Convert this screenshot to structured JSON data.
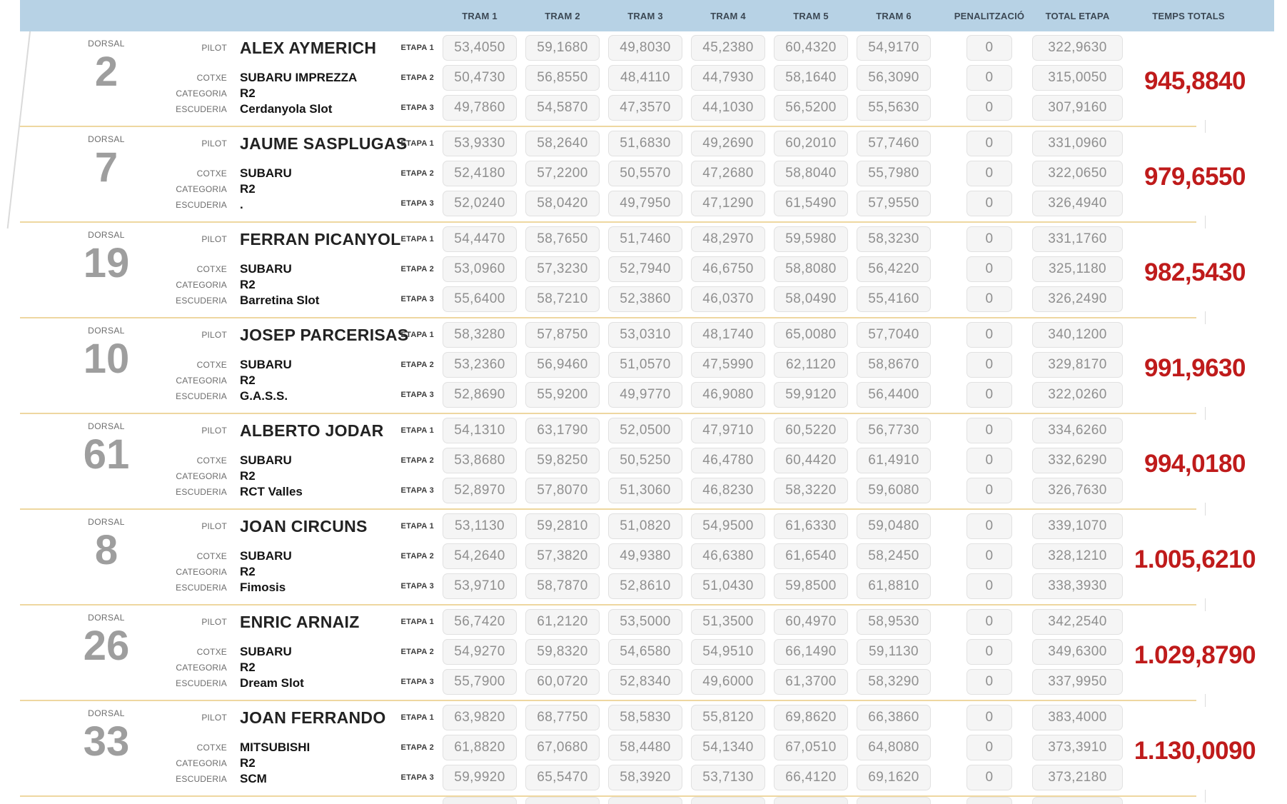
{
  "header": {
    "columns": [
      "TRAM 1",
      "TRAM 2",
      "TRAM 3",
      "TRAM 4",
      "TRAM 5",
      "TRAM 6",
      "PENALITZACIÓ",
      "TOTAL ETAPA",
      "TEMPS TOTALS"
    ]
  },
  "labels": {
    "dorsal": "DORSAL",
    "pilot": "PILOT",
    "cotxe": "COTXE",
    "categoria": "CATEGORIA",
    "escuderia": "ESCUDERIA",
    "etapes": [
      "ETAPA 1",
      "ETAPA 2",
      "ETAPA 3"
    ]
  },
  "colors": {
    "header_bg": "#b7d2e5",
    "header_text": "#3c4854",
    "row_separator": "#eed7a0",
    "cell_bg": "#f5f5f5",
    "cell_border": "#e1e1e1",
    "time_text": "#8f8f8f",
    "dorsal_gray": "#9e9e9e",
    "total_red": "#bf1b1b"
  },
  "riders": [
    {
      "dorsal": "2",
      "pilot": "ALEX AYMERICH",
      "cotxe": "SUBARU IMPREZZA",
      "categoria": "R2",
      "escuderia": "Cerdanyola Slot",
      "etapes": [
        {
          "trams": [
            "53,4050",
            "59,1680",
            "49,8030",
            "45,2380",
            "60,4320",
            "54,9170"
          ],
          "penalitzacio": "0",
          "total": "322,9630"
        },
        {
          "trams": [
            "50,4730",
            "56,8550",
            "48,4110",
            "44,7930",
            "58,1640",
            "56,3090"
          ],
          "penalitzacio": "0",
          "total": "315,0050"
        },
        {
          "trams": [
            "49,7860",
            "54,5870",
            "47,3570",
            "44,1030",
            "56,5200",
            "55,5630"
          ],
          "penalitzacio": "0",
          "total": "307,9160"
        }
      ],
      "temps_totals": "945,8840"
    },
    {
      "dorsal": "7",
      "pilot": "JAUME SASPLUGAS",
      "cotxe": "SUBARU",
      "categoria": "R2",
      "escuderia": ".",
      "etapes": [
        {
          "trams": [
            "53,9330",
            "58,2640",
            "51,6830",
            "49,2690",
            "60,2010",
            "57,7460"
          ],
          "penalitzacio": "0",
          "total": "331,0960"
        },
        {
          "trams": [
            "52,4180",
            "57,2200",
            "50,5570",
            "47,2680",
            "58,8040",
            "55,7980"
          ],
          "penalitzacio": "0",
          "total": "322,0650"
        },
        {
          "trams": [
            "52,0240",
            "58,0420",
            "49,7950",
            "47,1290",
            "61,5490",
            "57,9550"
          ],
          "penalitzacio": "0",
          "total": "326,4940"
        }
      ],
      "temps_totals": "979,6550"
    },
    {
      "dorsal": "19",
      "pilot": "FERRAN PICANYOL",
      "cotxe": "SUBARU",
      "categoria": "R2",
      "escuderia": "Barretina Slot",
      "etapes": [
        {
          "trams": [
            "54,4470",
            "58,7650",
            "51,7460",
            "48,2970",
            "59,5980",
            "58,3230"
          ],
          "penalitzacio": "0",
          "total": "331,1760"
        },
        {
          "trams": [
            "53,0960",
            "57,3230",
            "52,7940",
            "46,6750",
            "58,8080",
            "56,4220"
          ],
          "penalitzacio": "0",
          "total": "325,1180"
        },
        {
          "trams": [
            "55,6400",
            "58,7210",
            "52,3860",
            "46,0370",
            "58,0490",
            "55,4160"
          ],
          "penalitzacio": "0",
          "total": "326,2490"
        }
      ],
      "temps_totals": "982,5430"
    },
    {
      "dorsal": "10",
      "pilot": "JOSEP PARCERISAS",
      "cotxe": "SUBARU",
      "categoria": "R2",
      "escuderia": "G.A.S.S.",
      "etapes": [
        {
          "trams": [
            "58,3280",
            "57,8750",
            "53,0310",
            "48,1740",
            "65,0080",
            "57,7040"
          ],
          "penalitzacio": "0",
          "total": "340,1200"
        },
        {
          "trams": [
            "53,2360",
            "56,9460",
            "51,0570",
            "47,5990",
            "62,1120",
            "58,8670"
          ],
          "penalitzacio": "0",
          "total": "329,8170"
        },
        {
          "trams": [
            "52,8690",
            "55,9200",
            "49,9770",
            "46,9080",
            "59,9120",
            "56,4400"
          ],
          "penalitzacio": "0",
          "total": "322,0260"
        }
      ],
      "temps_totals": "991,9630"
    },
    {
      "dorsal": "61",
      "pilot": "ALBERTO JODAR",
      "cotxe": "SUBARU",
      "categoria": "R2",
      "escuderia": "RCT Valles",
      "etapes": [
        {
          "trams": [
            "54,1310",
            "63,1790",
            "52,0500",
            "47,9710",
            "60,5220",
            "56,7730"
          ],
          "penalitzacio": "0",
          "total": "334,6260"
        },
        {
          "trams": [
            "53,8680",
            "59,8250",
            "50,5250",
            "46,4780",
            "60,4420",
            "61,4910"
          ],
          "penalitzacio": "0",
          "total": "332,6290"
        },
        {
          "trams": [
            "52,8970",
            "57,8070",
            "51,3060",
            "46,8230",
            "58,3220",
            "59,6080"
          ],
          "penalitzacio": "0",
          "total": "326,7630"
        }
      ],
      "temps_totals": "994,0180"
    },
    {
      "dorsal": "8",
      "pilot": "JOAN CIRCUNS",
      "cotxe": "SUBARU",
      "categoria": "R2",
      "escuderia": "Fimosis",
      "etapes": [
        {
          "trams": [
            "53,1130",
            "59,2810",
            "51,0820",
            "54,9500",
            "61,6330",
            "59,0480"
          ],
          "penalitzacio": "0",
          "total": "339,1070"
        },
        {
          "trams": [
            "54,2640",
            "57,3820",
            "49,9380",
            "46,6380",
            "61,6540",
            "58,2450"
          ],
          "penalitzacio": "0",
          "total": "328,1210"
        },
        {
          "trams": [
            "53,9710",
            "58,7870",
            "52,8610",
            "51,0430",
            "59,8500",
            "61,8810"
          ],
          "penalitzacio": "0",
          "total": "338,3930"
        }
      ],
      "temps_totals": "1.005,6210"
    },
    {
      "dorsal": "26",
      "pilot": "ENRIC ARNAIZ",
      "cotxe": "SUBARU",
      "categoria": "R2",
      "escuderia": "Dream Slot",
      "etapes": [
        {
          "trams": [
            "56,7420",
            "61,2120",
            "53,5000",
            "51,3500",
            "60,4970",
            "58,9530"
          ],
          "penalitzacio": "0",
          "total": "342,2540"
        },
        {
          "trams": [
            "54,9270",
            "59,8320",
            "54,6580",
            "54,9510",
            "66,1490",
            "59,1130"
          ],
          "penalitzacio": "0",
          "total": "349,6300"
        },
        {
          "trams": [
            "55,7900",
            "60,0720",
            "52,8340",
            "49,6000",
            "61,3700",
            "58,3290"
          ],
          "penalitzacio": "0",
          "total": "337,9950"
        }
      ],
      "temps_totals": "1.029,8790"
    },
    {
      "dorsal": "33",
      "pilot": "JOAN FERRANDO",
      "cotxe": "MITSUBISHI",
      "categoria": "R2",
      "escuderia": "SCM",
      "etapes": [
        {
          "trams": [
            "63,9820",
            "68,7750",
            "58,5830",
            "55,8120",
            "69,8620",
            "66,3860"
          ],
          "penalitzacio": "0",
          "total": "383,4000"
        },
        {
          "trams": [
            "61,8820",
            "67,0680",
            "58,4480",
            "54,1340",
            "67,0510",
            "64,8080"
          ],
          "penalitzacio": "0",
          "total": "373,3910"
        },
        {
          "trams": [
            "59,9920",
            "65,5470",
            "58,3920",
            "53,7130",
            "66,4120",
            "69,1620"
          ],
          "penalitzacio": "0",
          "total": "373,2180"
        }
      ],
      "temps_totals": "1.130,0090"
    }
  ]
}
